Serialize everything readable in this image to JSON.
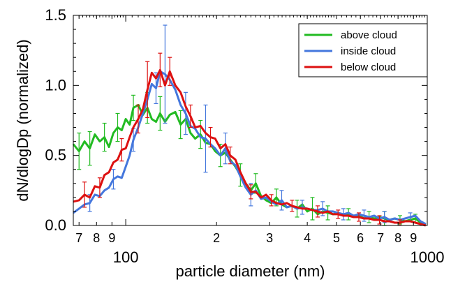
{
  "chart_data": {
    "type": "line",
    "xlabel": "particle diameter (nm)",
    "ylabel": "dN/dlogDp (normalized)",
    "xscale": "log",
    "xlim": [
      67,
      1000
    ],
    "ylim": [
      0,
      1.5
    ],
    "yticks": [
      "0.0",
      "0.5",
      "1.0",
      "1.5"
    ],
    "x_major_ticks": [
      {
        "value": 100,
        "label": "100"
      },
      {
        "value": 1000,
        "label": "1000"
      }
    ],
    "x_minor_ticks": [
      {
        "value": 70,
        "label": "7"
      },
      {
        "value": 80,
        "label": "8"
      },
      {
        "value": 90,
        "label": "9"
      },
      {
        "value": 200,
        "label": "2"
      },
      {
        "value": 300,
        "label": "3"
      },
      {
        "value": 400,
        "label": "4"
      },
      {
        "value": 500,
        "label": "5"
      },
      {
        "value": 600,
        "label": "6"
      },
      {
        "value": 700,
        "label": "7"
      },
      {
        "value": 800,
        "label": "8"
      },
      {
        "value": 900,
        "label": "9"
      }
    ],
    "legend_position": "top-right",
    "grid": false,
    "series": [
      {
        "name": "above cloud",
        "color": "#22bb22",
        "points": [
          [
            67,
            0.58
          ],
          [
            70,
            0.53
          ],
          [
            73,
            0.6
          ],
          [
            76,
            0.55
          ],
          [
            79,
            0.65
          ],
          [
            82,
            0.6
          ],
          [
            85,
            0.63
          ],
          [
            88,
            0.56
          ],
          [
            91,
            0.66
          ],
          [
            94,
            0.7
          ],
          [
            97,
            0.68
          ],
          [
            100,
            0.76
          ],
          [
            103,
            0.72
          ],
          [
            106,
            0.84
          ],
          [
            110,
            0.86
          ],
          [
            114,
            0.79
          ],
          [
            118,
            0.84
          ],
          [
            122,
            0.76
          ],
          [
            126,
            0.74
          ],
          [
            130,
            0.8
          ],
          [
            135,
            0.74
          ],
          [
            140,
            0.79
          ],
          [
            146,
            0.81
          ],
          [
            152,
            0.72
          ],
          [
            158,
            0.76
          ],
          [
            164,
            0.66
          ],
          [
            170,
            0.62
          ],
          [
            177,
            0.65
          ],
          [
            184,
            0.59
          ],
          [
            191,
            0.58
          ],
          [
            198,
            0.53
          ],
          [
            206,
            0.5
          ],
          [
            214,
            0.52
          ],
          [
            222,
            0.47
          ],
          [
            231,
            0.42
          ],
          [
            240,
            0.36
          ],
          [
            250,
            0.3
          ],
          [
            260,
            0.25
          ],
          [
            270,
            0.3
          ],
          [
            281,
            0.21
          ],
          [
            292,
            0.18
          ],
          [
            304,
            0.16
          ],
          [
            316,
            0.2
          ],
          [
            329,
            0.15
          ],
          [
            342,
            0.13
          ],
          [
            356,
            0.14
          ],
          [
            370,
            0.12
          ],
          [
            385,
            0.15
          ],
          [
            400,
            0.1
          ],
          [
            416,
            0.12
          ],
          [
            433,
            0.08
          ],
          [
            450,
            0.1
          ],
          [
            468,
            0.09
          ],
          [
            487,
            0.08
          ],
          [
            506,
            0.09
          ],
          [
            527,
            0.07
          ],
          [
            548,
            0.08
          ],
          [
            570,
            0.06
          ],
          [
            593,
            0.07
          ],
          [
            617,
            0.05
          ],
          [
            641,
            0.06
          ],
          [
            667,
            0.05
          ],
          [
            694,
            0.06
          ],
          [
            721,
            0.05
          ],
          [
            750,
            0.04
          ],
          [
            780,
            0.05
          ],
          [
            812,
            0.04
          ],
          [
            844,
            0.03
          ],
          [
            878,
            0.04
          ],
          [
            913,
            0.05
          ],
          [
            950,
            0.02
          ],
          [
            988,
            0.01
          ]
        ],
        "error_bars": [
          [
            70,
            0.53,
            0.13
          ],
          [
            76,
            0.55,
            0.12
          ],
          [
            85,
            0.63,
            0.1
          ],
          [
            94,
            0.7,
            0.1
          ],
          [
            106,
            0.84,
            0.09
          ],
          [
            118,
            0.84,
            0.11
          ],
          [
            130,
            0.8,
            0.12
          ],
          [
            152,
            0.72,
            0.1
          ],
          [
            177,
            0.65,
            0.1
          ],
          [
            206,
            0.5,
            0.08
          ],
          [
            240,
            0.36,
            0.08
          ],
          [
            270,
            0.3,
            0.07
          ],
          [
            316,
            0.2,
            0.06
          ],
          [
            370,
            0.12,
            0.06
          ],
          [
            416,
            0.12,
            0.08
          ],
          [
            468,
            0.09,
            0.05
          ],
          [
            548,
            0.08,
            0.04
          ],
          [
            641,
            0.06,
            0.04
          ],
          [
            721,
            0.05,
            0.05
          ],
          [
            812,
            0.04,
            0.03
          ],
          [
            913,
            0.05,
            0.03
          ]
        ]
      },
      {
        "name": "inside cloud",
        "color": "#4477dd",
        "points": [
          [
            67,
            0.09
          ],
          [
            70,
            0.12
          ],
          [
            73,
            0.15
          ],
          [
            76,
            0.16
          ],
          [
            79,
            0.22
          ],
          [
            82,
            0.21
          ],
          [
            85,
            0.25
          ],
          [
            88,
            0.27
          ],
          [
            91,
            0.33
          ],
          [
            94,
            0.35
          ],
          [
            97,
            0.34
          ],
          [
            100,
            0.42
          ],
          [
            103,
            0.5
          ],
          [
            106,
            0.61
          ],
          [
            110,
            0.7
          ],
          [
            114,
            0.8
          ],
          [
            118,
            0.9
          ],
          [
            122,
            1.01
          ],
          [
            126,
            0.98
          ],
          [
            130,
            1.1
          ],
          [
            135,
            1.08
          ],
          [
            140,
            1.04
          ],
          [
            146,
            0.97
          ],
          [
            152,
            0.86
          ],
          [
            158,
            0.8
          ],
          [
            164,
            0.71
          ],
          [
            170,
            0.69
          ],
          [
            177,
            0.63
          ],
          [
            184,
            0.62
          ],
          [
            191,
            0.58
          ],
          [
            198,
            0.55
          ],
          [
            206,
            0.5
          ],
          [
            214,
            0.55
          ],
          [
            222,
            0.46
          ],
          [
            231,
            0.43
          ],
          [
            240,
            0.35
          ],
          [
            250,
            0.27
          ],
          [
            260,
            0.22
          ],
          [
            270,
            0.25
          ],
          [
            281,
            0.19
          ],
          [
            292,
            0.2
          ],
          [
            304,
            0.17
          ],
          [
            316,
            0.15
          ],
          [
            329,
            0.18
          ],
          [
            342,
            0.13
          ],
          [
            356,
            0.14
          ],
          [
            370,
            0.12
          ],
          [
            385,
            0.13
          ],
          [
            400,
            0.12
          ],
          [
            416,
            0.11
          ],
          [
            433,
            0.11
          ],
          [
            450,
            0.12
          ],
          [
            468,
            0.1
          ],
          [
            487,
            0.1
          ],
          [
            506,
            0.09
          ],
          [
            527,
            0.08
          ],
          [
            548,
            0.09
          ],
          [
            570,
            0.07
          ],
          [
            593,
            0.08
          ],
          [
            617,
            0.07
          ],
          [
            641,
            0.06
          ],
          [
            667,
            0.07
          ],
          [
            694,
            0.05
          ],
          [
            721,
            0.06
          ],
          [
            750,
            0.04
          ],
          [
            780,
            0.05
          ],
          [
            812,
            0.04
          ],
          [
            844,
            0.05
          ],
          [
            878,
            0.06
          ],
          [
            913,
            0.07
          ],
          [
            950,
            0.03
          ],
          [
            988,
            0.01
          ]
        ],
        "error_bars": [
          [
            76,
            0.16,
            0.06
          ],
          [
            91,
            0.33,
            0.07
          ],
          [
            106,
            0.61,
            0.08
          ],
          [
            126,
            0.98,
            0.11
          ],
          [
            135,
            1.08,
            0.35
          ],
          [
            158,
            0.8,
            0.15
          ],
          [
            184,
            0.62,
            0.24
          ],
          [
            214,
            0.55,
            0.11
          ],
          [
            260,
            0.22,
            0.08
          ],
          [
            329,
            0.18,
            0.07
          ],
          [
            385,
            0.13,
            0.05
          ],
          [
            450,
            0.12,
            0.05
          ],
          [
            527,
            0.08,
            0.04
          ],
          [
            617,
            0.07,
            0.04
          ],
          [
            721,
            0.06,
            0.04
          ],
          [
            878,
            0.06,
            0.03
          ]
        ]
      },
      {
        "name": "below cloud",
        "color": "#dd1111",
        "points": [
          [
            67,
            0.17
          ],
          [
            70,
            0.18
          ],
          [
            73,
            0.22
          ],
          [
            76,
            0.2
          ],
          [
            79,
            0.28
          ],
          [
            82,
            0.27
          ],
          [
            85,
            0.36
          ],
          [
            88,
            0.38
          ],
          [
            91,
            0.45
          ],
          [
            94,
            0.47
          ],
          [
            97,
            0.54
          ],
          [
            100,
            0.55
          ],
          [
            103,
            0.63
          ],
          [
            106,
            0.7
          ],
          [
            110,
            0.76
          ],
          [
            114,
            0.83
          ],
          [
            118,
            0.97
          ],
          [
            122,
            1.09
          ],
          [
            126,
            1.05
          ],
          [
            130,
            1.11
          ],
          [
            135,
            1.0
          ],
          [
            140,
            1.1
          ],
          [
            146,
            1.0
          ],
          [
            152,
            0.95
          ],
          [
            158,
            0.85
          ],
          [
            164,
            0.78
          ],
          [
            170,
            0.7
          ],
          [
            177,
            0.71
          ],
          [
            184,
            0.66
          ],
          [
            191,
            0.63
          ],
          [
            198,
            0.62
          ],
          [
            206,
            0.55
          ],
          [
            214,
            0.58
          ],
          [
            222,
            0.5
          ],
          [
            231,
            0.47
          ],
          [
            240,
            0.38
          ],
          [
            250,
            0.3
          ],
          [
            260,
            0.24
          ],
          [
            270,
            0.24
          ],
          [
            281,
            0.2
          ],
          [
            292,
            0.22
          ],
          [
            304,
            0.18
          ],
          [
            316,
            0.16
          ],
          [
            329,
            0.15
          ],
          [
            342,
            0.16
          ],
          [
            356,
            0.14
          ],
          [
            370,
            0.13
          ],
          [
            385,
            0.12
          ],
          [
            400,
            0.12
          ],
          [
            416,
            0.11
          ],
          [
            433,
            0.1
          ],
          [
            450,
            0.09
          ],
          [
            468,
            0.1
          ],
          [
            487,
            0.08
          ],
          [
            506,
            0.08
          ],
          [
            527,
            0.07
          ],
          [
            548,
            0.07
          ],
          [
            570,
            0.06
          ],
          [
            593,
            0.06
          ],
          [
            617,
            0.05
          ],
          [
            641,
            0.05
          ],
          [
            667,
            0.04
          ],
          [
            694,
            0.04
          ],
          [
            721,
            0.03
          ],
          [
            750,
            0.03
          ],
          [
            780,
            0.02
          ],
          [
            812,
            0.02
          ],
          [
            844,
            0.03
          ],
          [
            878,
            0.03
          ],
          [
            913,
            0.02
          ],
          [
            950,
            0.01
          ],
          [
            988,
            0.0
          ]
        ],
        "error_bars": [
          [
            73,
            0.22,
            0.09
          ],
          [
            82,
            0.27,
            0.07
          ],
          [
            97,
            0.54,
            0.08
          ],
          [
            110,
            0.76,
            0.1
          ],
          [
            118,
            0.97,
            0.2
          ],
          [
            130,
            1.11,
            0.12
          ],
          [
            140,
            1.1,
            0.1
          ],
          [
            164,
            0.78,
            0.08
          ],
          [
            191,
            0.63,
            0.07
          ],
          [
            222,
            0.5,
            0.06
          ],
          [
            260,
            0.24,
            0.05
          ],
          [
            304,
            0.18,
            0.04
          ],
          [
            356,
            0.14,
            0.04
          ],
          [
            433,
            0.1,
            0.04
          ],
          [
            506,
            0.08,
            0.03
          ],
          [
            593,
            0.06,
            0.03
          ],
          [
            694,
            0.04,
            0.03
          ],
          [
            812,
            0.02,
            0.02
          ]
        ]
      }
    ]
  }
}
